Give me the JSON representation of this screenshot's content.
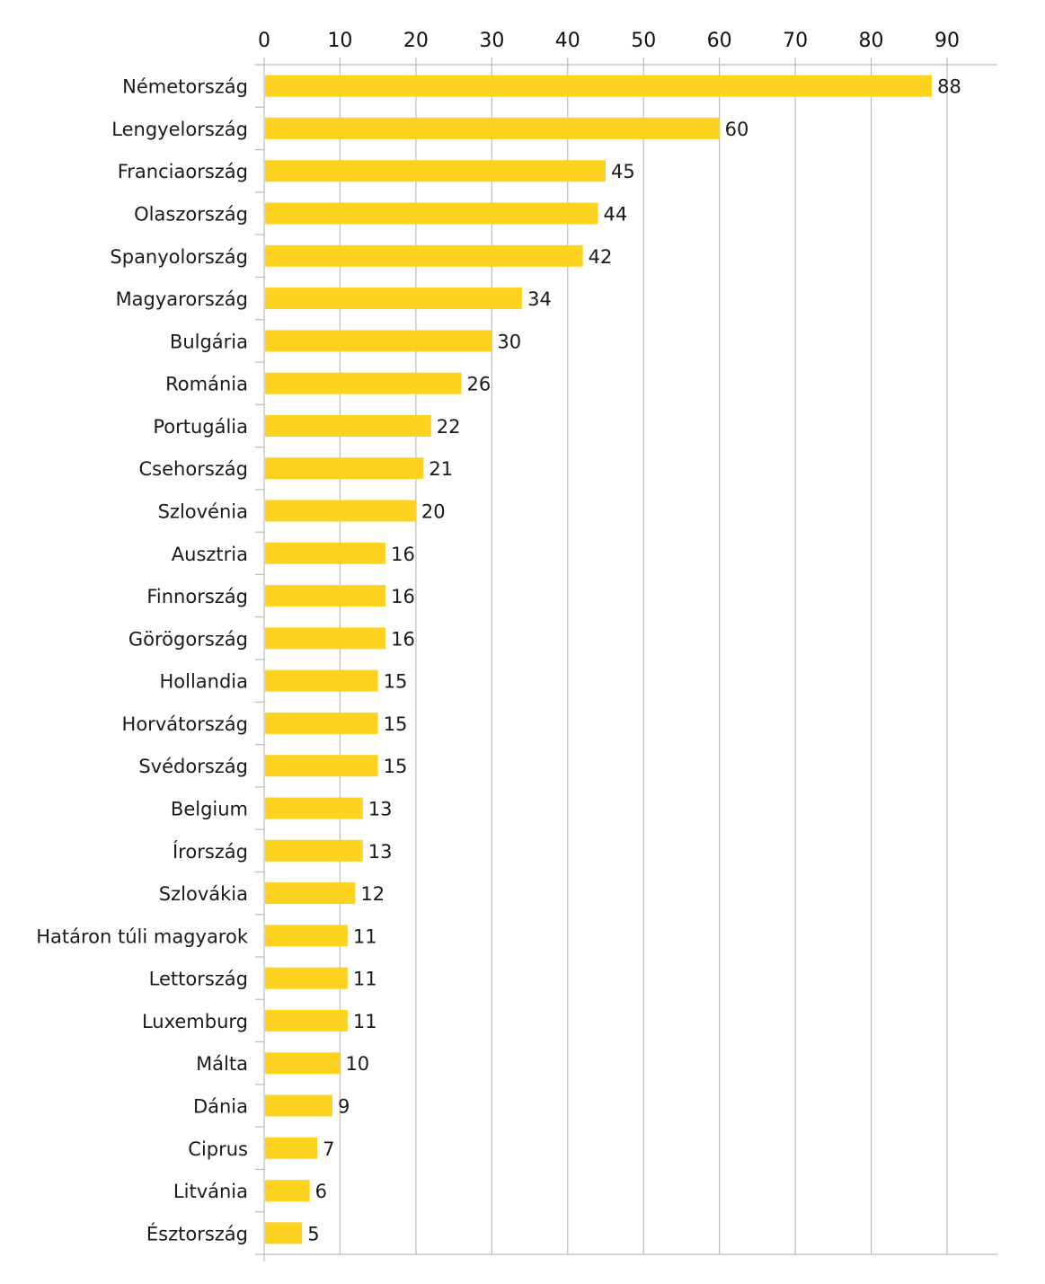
{
  "chart_data": {
    "type": "bar",
    "orientation": "horizontal",
    "title": "",
    "xlabel": "",
    "ylabel": "",
    "xlim": [
      0,
      96
    ],
    "xticks": [
      0,
      10,
      20,
      30,
      40,
      50,
      60,
      70,
      80,
      90
    ],
    "x_axis_position": "top",
    "grid": true,
    "bar_color": "#FDD320",
    "categories": [
      "Németország",
      "Lengyelország",
      "Franciaország",
      "Olaszország",
      "Spanyolország",
      "Magyarország",
      "Bulgária",
      "Románia",
      "Portugália",
      "Csehország",
      "Szlovénia",
      "Ausztria",
      "Finnország",
      "Görögország",
      "Hollandia",
      "Horvátország",
      "Svédország",
      "Belgium",
      "Írország",
      "Szlovákia",
      "Határon túli magyarok",
      "Lettország",
      "Luxemburg",
      "Málta",
      "Dánia",
      "Ciprus",
      "Litvánia",
      "Észtország"
    ],
    "values": [
      88,
      60,
      45,
      44,
      42,
      34,
      30,
      26,
      22,
      21,
      20,
      16,
      16,
      16,
      15,
      15,
      15,
      13,
      13,
      12,
      11,
      11,
      11,
      10,
      9,
      7,
      6,
      5
    ]
  }
}
